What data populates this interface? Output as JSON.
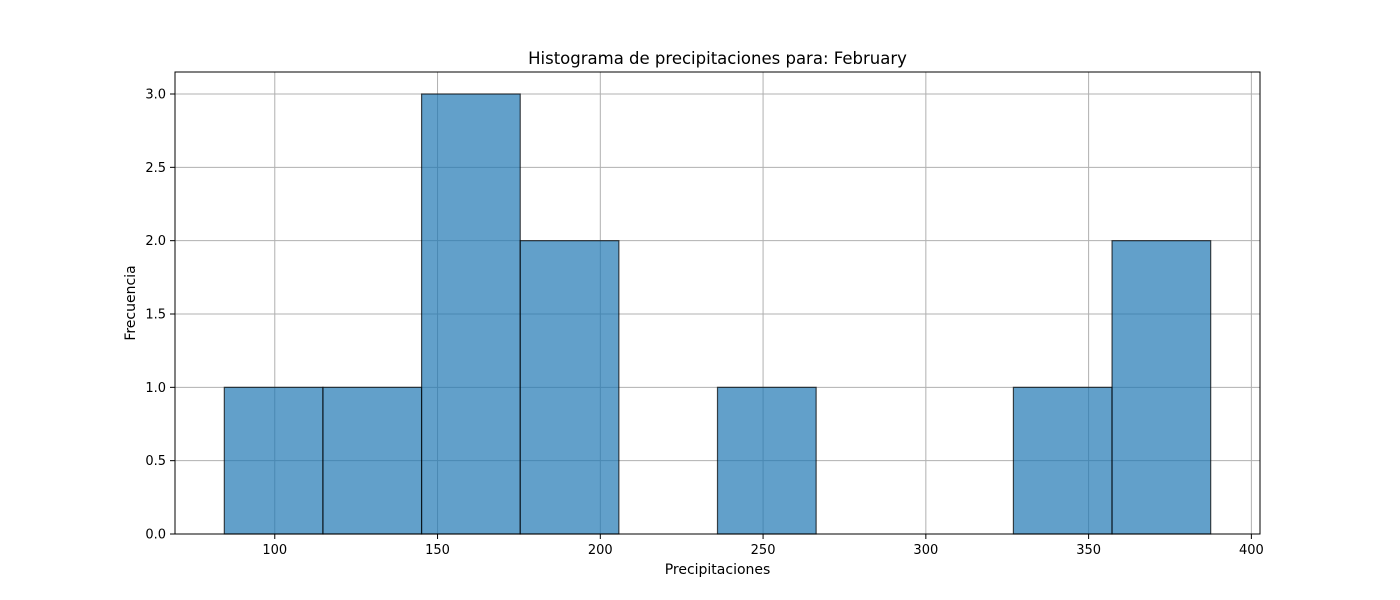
{
  "chart_data": {
    "type": "bar",
    "title": "Histograma de precipitaciones para: February",
    "xlabel": "Precipitaciones",
    "ylabel": "Frecuencia",
    "bins": [
      {
        "start": 84.5,
        "end": 114.8,
        "count": 1
      },
      {
        "start": 114.8,
        "end": 145.1,
        "count": 1
      },
      {
        "start": 145.1,
        "end": 175.4,
        "count": 3
      },
      {
        "start": 175.4,
        "end": 205.7,
        "count": 2
      },
      {
        "start": 205.7,
        "end": 236.0,
        "count": 0
      },
      {
        "start": 236.0,
        "end": 266.3,
        "count": 1
      },
      {
        "start": 266.3,
        "end": 296.6,
        "count": 0
      },
      {
        "start": 296.6,
        "end": 326.9,
        "count": 0
      },
      {
        "start": 326.9,
        "end": 357.2,
        "count": 1
      },
      {
        "start": 357.2,
        "end": 387.5,
        "count": 2
      }
    ],
    "xlim": [
      69.35,
      402.65
    ],
    "ylim": [
      0,
      3.15
    ],
    "xticks": [
      {
        "value": 100,
        "label": "100"
      },
      {
        "value": 150,
        "label": "150"
      },
      {
        "value": 200,
        "label": "200"
      },
      {
        "value": 250,
        "label": "250"
      },
      {
        "value": 300,
        "label": "300"
      },
      {
        "value": 350,
        "label": "350"
      },
      {
        "value": 400,
        "label": "400"
      }
    ],
    "yticks": [
      {
        "value": 0.0,
        "label": "0.0"
      },
      {
        "value": 0.5,
        "label": "0.5"
      },
      {
        "value": 1.0,
        "label": "1.0"
      },
      {
        "value": 1.5,
        "label": "1.5"
      },
      {
        "value": 2.0,
        "label": "2.0"
      },
      {
        "value": 2.5,
        "label": "2.5"
      },
      {
        "value": 3.0,
        "label": "3.0"
      }
    ],
    "grid": true,
    "colors": {
      "bar_fill": "#1f77b4",
      "bar_edge": "#000000",
      "grid": "#b0b0b0",
      "axis": "#000000"
    }
  }
}
